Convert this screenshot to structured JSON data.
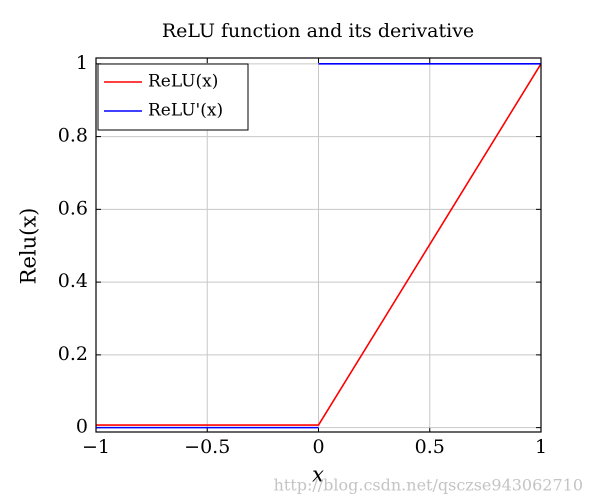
{
  "chart_data": {
    "type": "line",
    "title": "ReLU function and its derivative",
    "x_label": "x",
    "y_label": "Relu(x)",
    "xlim": [
      -1,
      1
    ],
    "ylim": [
      -0.012,
      1.016
    ],
    "xticks": [
      {
        "value": -1,
        "label": "−1"
      },
      {
        "value": -0.5,
        "label": "−0.5"
      },
      0,
      0.5,
      1
    ],
    "yticks": [
      0,
      0.2,
      0.4,
      0.6,
      0.8,
      1
    ],
    "grid": true,
    "legend": "upper left",
    "series": [
      {
        "name": "ReLU(x)",
        "color": "#ff0000",
        "x": [
          -1,
          0,
          1
        ],
        "values": [
          0.007,
          0.007,
          1
        ]
      },
      {
        "name": "ReLU'(x)",
        "color": "#0000ff",
        "x": [
          -1,
          0,
          0,
          0,
          1
        ],
        "values": [
          0,
          0,
          null,
          1,
          1
        ]
      }
    ],
    "watermark": "http://blog.csdn.net/qsczse943062710"
  }
}
